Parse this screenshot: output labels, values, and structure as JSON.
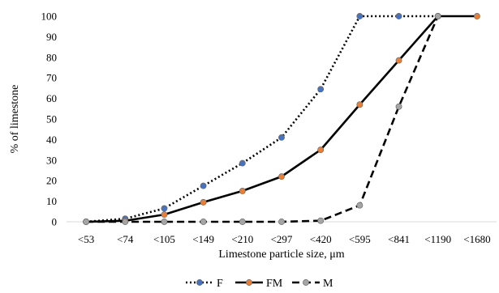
{
  "chart_data": {
    "type": "line",
    "title": "",
    "xlabel": "Limestone particle size, μm",
    "ylabel": "% of limestone",
    "categories": [
      "<53",
      "<74",
      "<105",
      "<149",
      "<210",
      "<297",
      "<420",
      "<595",
      "<841",
      "<1190",
      "<1680"
    ],
    "ylim": [
      0,
      100
    ],
    "yticks": [
      0,
      10,
      20,
      30,
      40,
      50,
      60,
      70,
      80,
      90,
      100
    ],
    "grid": false,
    "legend_position": "bottom",
    "series": [
      {
        "name": "F",
        "line_style": "dotted",
        "marker_color": "#4472C4",
        "values": [
          0,
          1.5,
          6.5,
          17.5,
          28.5,
          41,
          64.5,
          100,
          100,
          100,
          null
        ]
      },
      {
        "name": "FM",
        "line_style": "solid",
        "marker_color": "#ED7D31",
        "values": [
          0,
          0.5,
          3.5,
          9.5,
          15,
          22,
          35,
          57,
          78.5,
          100,
          100
        ]
      },
      {
        "name": "M",
        "line_style": "dashed",
        "marker_color": "#A5A5A5",
        "values": [
          0,
          0,
          0,
          0,
          0,
          0,
          0.5,
          8,
          56,
          100,
          null
        ]
      }
    ]
  }
}
